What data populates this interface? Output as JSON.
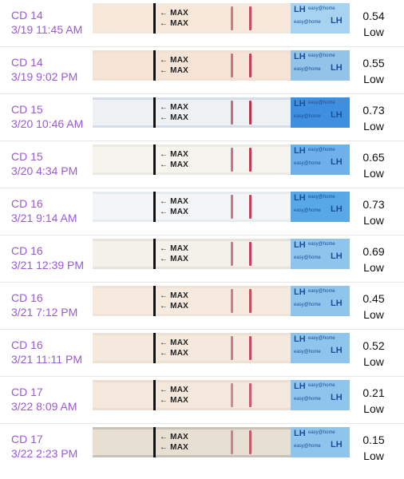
{
  "entries": [
    {
      "cycle_day": "CD 14",
      "timestamp": "3/19 11:45 AM",
      "value": "0.54",
      "level": "Low",
      "strip": {
        "bg": "#efe9de",
        "pad": "#f6e7d8",
        "brand_bg": "#a7d3f1",
        "line_color": "#c24c63",
        "max_text": "← MAX"
      }
    },
    {
      "cycle_day": "CD 14",
      "timestamp": "3/19 9:02 PM",
      "value": "0.55",
      "level": "Low",
      "strip": {
        "bg": "#f0dfd2",
        "pad": "#f5e3d6",
        "brand_bg": "#93c3e8",
        "line_color": "#c23f5c",
        "max_text": "← MAX"
      }
    },
    {
      "cycle_day": "CD 15",
      "timestamp": "3/20 10:46 AM",
      "value": "0.73",
      "level": "Low",
      "strip": {
        "bg": "#d6dde6",
        "pad": "#eef1f4",
        "brand_bg": "#3f8fe0",
        "line_color": "#b8344f",
        "max_text": "← MAX"
      }
    },
    {
      "cycle_day": "CD 15",
      "timestamp": "3/20 4:34 PM",
      "value": "0.65",
      "level": "Low",
      "strip": {
        "bg": "#eceae4",
        "pad": "#f6f4ef",
        "brand_bg": "#6db0ea",
        "line_color": "#c23954",
        "max_text": "← MAX"
      }
    },
    {
      "cycle_day": "CD 16",
      "timestamp": "3/21 9:14 AM",
      "value": "0.73",
      "level": "Low",
      "strip": {
        "bg": "#e6ebee",
        "pad": "#f3f5f6",
        "brand_bg": "#58a7e6",
        "line_color": "#c2405a",
        "max_text": "← MAX"
      }
    },
    {
      "cycle_day": "CD 16",
      "timestamp": "3/21 12:39 PM",
      "value": "0.69",
      "level": "Low",
      "strip": {
        "bg": "#e6e3da",
        "pad": "#f4f1ea",
        "brand_bg": "#8fc5ec",
        "line_color": "#c63e5d",
        "max_text": "← MAX"
      }
    },
    {
      "cycle_day": "CD 16",
      "timestamp": "3/21 7:12 PM",
      "value": "0.45",
      "level": "Low",
      "strip": {
        "bg": "#efe2d6",
        "pad": "#f6eadf",
        "brand_bg": "#8fc5ec",
        "line_color": "#c34d61",
        "max_text": "← MAX"
      }
    },
    {
      "cycle_day": "CD 16",
      "timestamp": "3/21 11:11 PM",
      "value": "0.52",
      "level": "Low",
      "strip": {
        "bg": "#efe1d4",
        "pad": "#f5e8dc",
        "brand_bg": "#8fc5ec",
        "line_color": "#c24a62",
        "max_text": "← MAX"
      }
    },
    {
      "cycle_day": "CD 17",
      "timestamp": "3/22 8:09 AM",
      "value": "0.21",
      "level": "Low",
      "strip": {
        "bg": "#ecded3",
        "pad": "#f4e7dc",
        "brand_bg": "#8fc5ec",
        "line_color": "#c85c72",
        "max_text": "← MAX"
      }
    },
    {
      "cycle_day": "CD 17",
      "timestamp": "3/22 2:23 PM",
      "value": "0.15",
      "level": "Low",
      "strip": {
        "bg": "#c9c2b6",
        "pad": "#e8dfd3",
        "brand_bg": "#8fc5ec",
        "line_color": "#c25a6c",
        "max_text": "← MAX"
      }
    }
  ],
  "brand": {
    "lh": "LH",
    "tiny": "easy@home"
  }
}
